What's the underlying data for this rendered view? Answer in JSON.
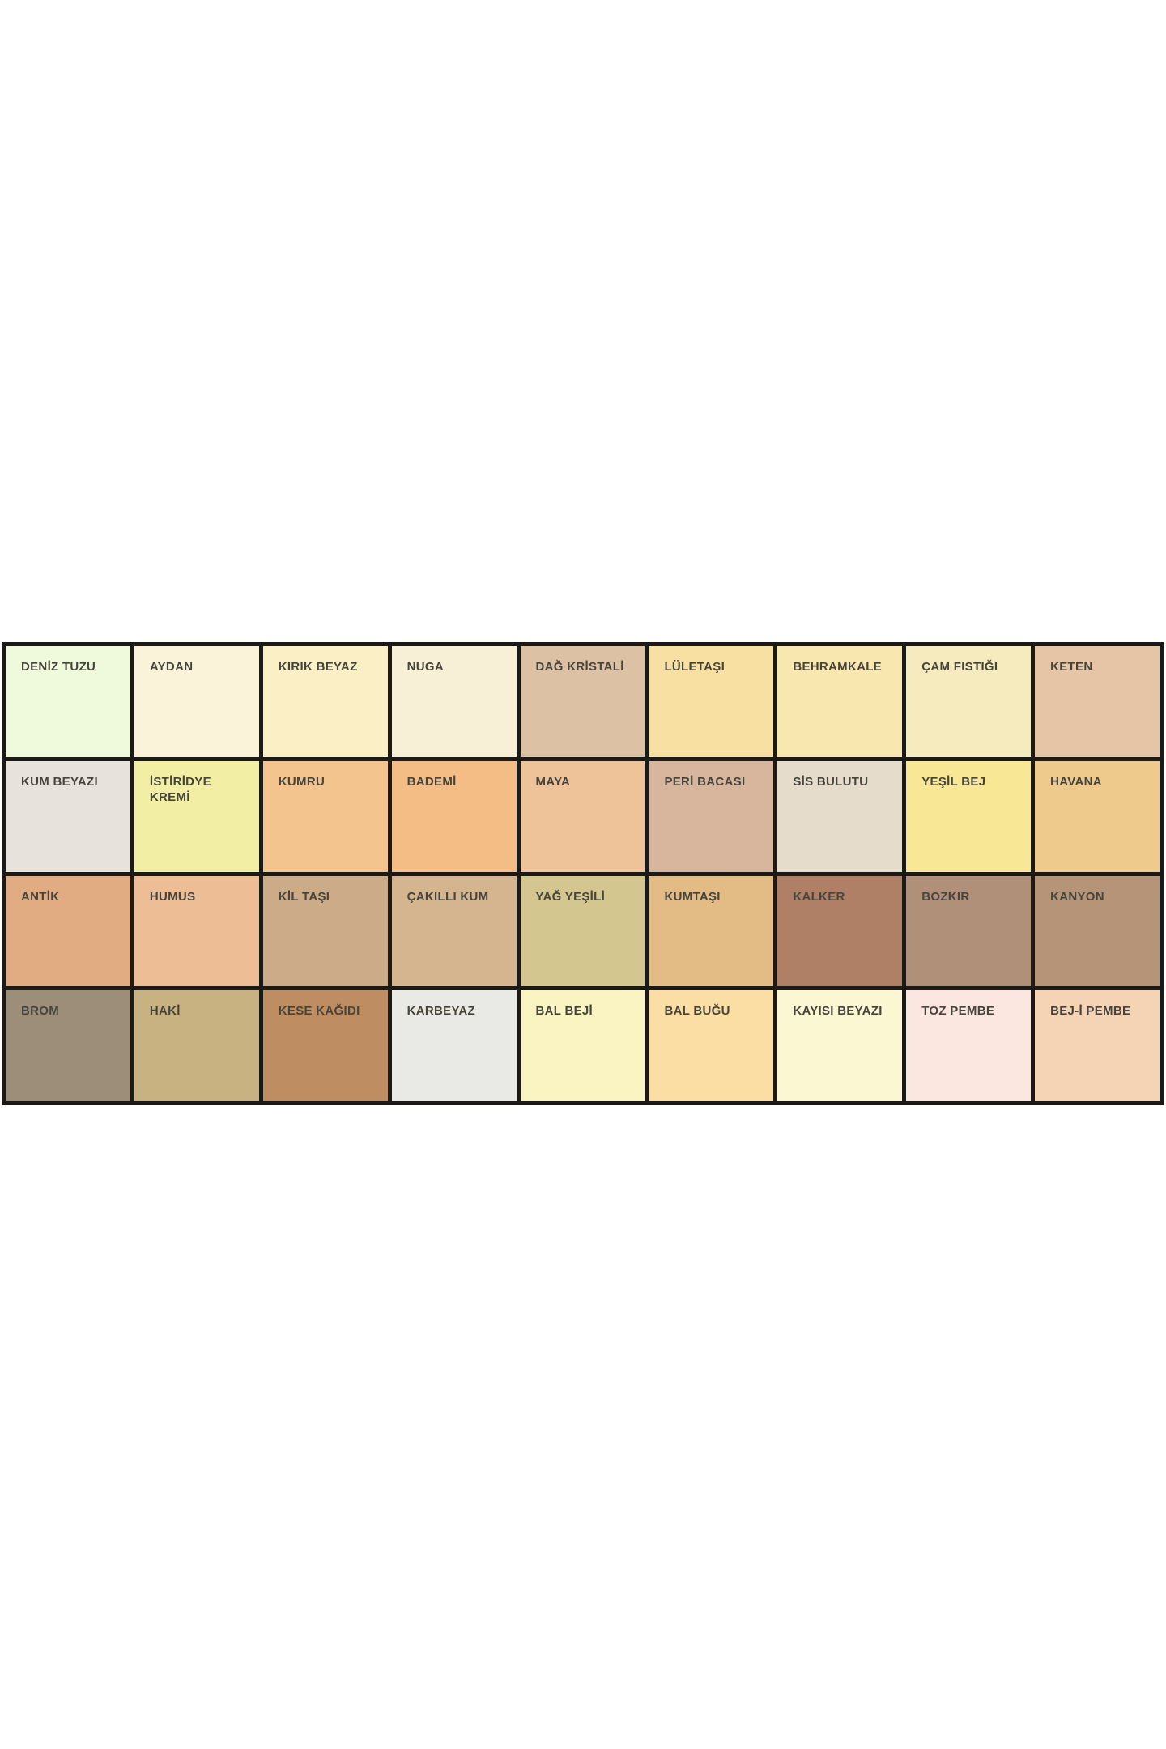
{
  "chart_data": {
    "type": "table",
    "title": "",
    "description_rows": 4,
    "description_cols": 9,
    "rows": [
      {
        "cells": [
          {
            "label": "DENİZ TUZU",
            "color": "#EFFADD"
          },
          {
            "label": "AYDAN",
            "color": "#FAF3DA"
          },
          {
            "label": "KIRIK BEYAZ",
            "color": "#FAEFC5"
          },
          {
            "label": "NUGA",
            "color": "#F7F0D6"
          },
          {
            "label": "DAĞ KRİSTALİ",
            "color": "#DDC1A5"
          },
          {
            "label": "LÜLETAŞI",
            "color": "#F8DFA2"
          },
          {
            "label": "BEHRAMKALE",
            "color": "#F8E7AE"
          },
          {
            "label": "ÇAM FISTIĞI",
            "color": "#F6EBBE"
          },
          {
            "label": "KETEN",
            "color": "#E5C5A6"
          }
        ]
      },
      {
        "cells": [
          {
            "label": "KUM BEYAZI",
            "color": "#E7E3DC"
          },
          {
            "label": "İSTİRİDYE KREMİ",
            "color": "#F2EFA4"
          },
          {
            "label": "KUMRU",
            "color": "#F4C48F"
          },
          {
            "label": "BADEMİ",
            "color": "#F4BD85"
          },
          {
            "label": "MAYA",
            "color": "#EFC39A"
          },
          {
            "label": "PERİ BACASI",
            "color": "#D8B59D"
          },
          {
            "label": "SİS BULUTU",
            "color": "#E5DCCB"
          },
          {
            "label": "YEŞİL BEJ",
            "color": "#F8E896"
          },
          {
            "label": "HAVANA",
            "color": "#EFCA8D"
          }
        ]
      },
      {
        "cells": [
          {
            "label": "ANTİK",
            "color": "#E2AC82"
          },
          {
            "label": "HUMUS",
            "color": "#EDBD95"
          },
          {
            "label": "KİL TAŞI",
            "color": "#CCAB88"
          },
          {
            "label": "ÇAKILLI KUM",
            "color": "#D5B58F"
          },
          {
            "label": "YAĞ YEŞİLİ",
            "color": "#D3C68F"
          },
          {
            "label": "KUMTAŞI",
            "color": "#E2BB85"
          },
          {
            "label": "KALKER",
            "color": "#AF8066"
          },
          {
            "label": "BOZKIR",
            "color": "#B09079"
          },
          {
            "label": "KANYON",
            "color": "#B69478"
          }
        ]
      },
      {
        "cells": [
          {
            "label": "BROM",
            "color": "#9D8E7A"
          },
          {
            "label": "HAKİ",
            "color": "#C9B282"
          },
          {
            "label": "KESE KAĞIDI",
            "color": "#BE8E62"
          },
          {
            "label": "KARBEYAZ",
            "color": "#E9EAE5"
          },
          {
            "label": "BAL BEJİ",
            "color": "#FAF4C2"
          },
          {
            "label": "BAL BUĞU",
            "color": "#FBDEA3"
          },
          {
            "label": "KAYISI BEYAZI",
            "color": "#FBF7D2"
          },
          {
            "label": "TOZ PEMBE",
            "color": "#FBE7DF"
          },
          {
            "label": "BEJ-İ PEMBE",
            "color": "#F5D3B5"
          }
        ]
      }
    ],
    "layout": {
      "legend": "off",
      "grid_border_color": "#1C1A17",
      "label_text_color": "#47443C",
      "page_background": "#FFFFFF"
    }
  }
}
